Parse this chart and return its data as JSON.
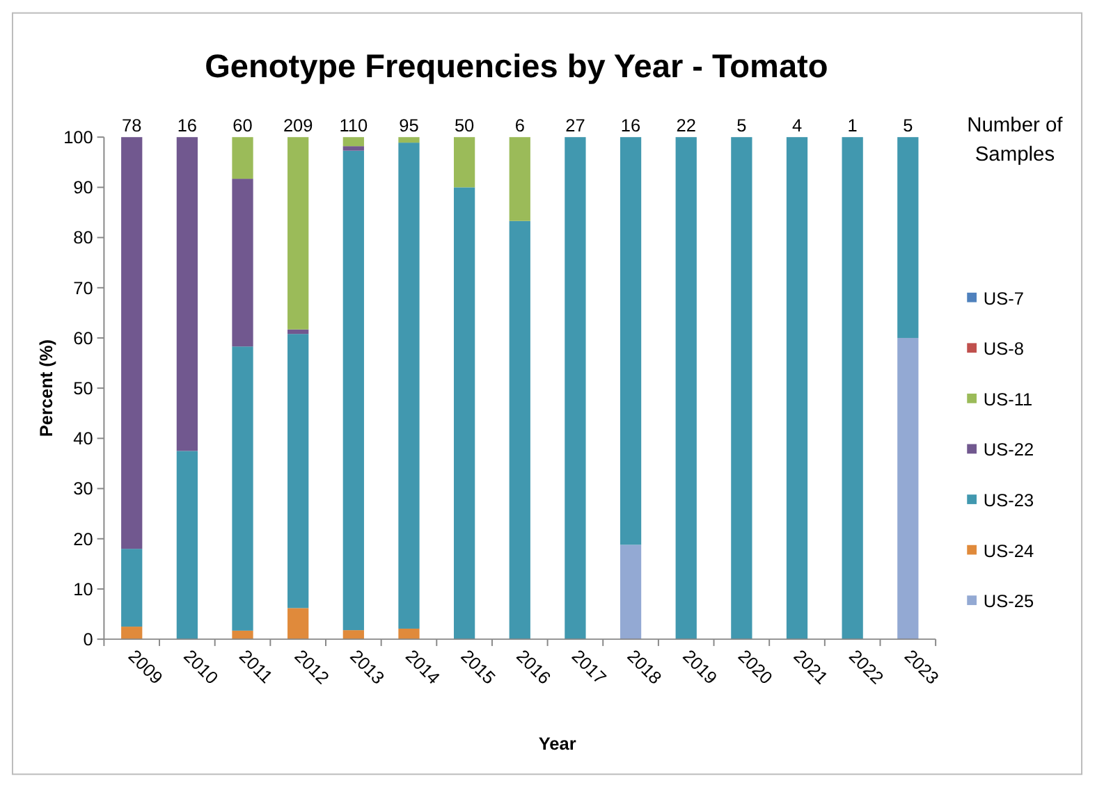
{
  "chart_data": {
    "type": "bar",
    "title": "Genotype Frequencies by Year - Tomato",
    "xlabel": "Year",
    "ylabel": "Percent (%)",
    "stacked": true,
    "categories": [
      "2009",
      "2010",
      "2011",
      "2012",
      "2013",
      "2014",
      "2015",
      "2016",
      "2017",
      "2018",
      "2019",
      "2020",
      "2021",
      "2022",
      "2023"
    ],
    "series": [
      {
        "name": "US-25",
        "color": "#93a9d3",
        "values": [
          0,
          0,
          0,
          0,
          0,
          0,
          0,
          0,
          0,
          18.8,
          0,
          0,
          0,
          0,
          60
        ]
      },
      {
        "name": "US-24",
        "color": "#e08a3b",
        "values": [
          2.5,
          0,
          1.7,
          6.2,
          1.8,
          2.1,
          0,
          0,
          0,
          0,
          0,
          0,
          0,
          0,
          0
        ]
      },
      {
        "name": "US-23",
        "color": "#4198af",
        "values": [
          15.5,
          37.5,
          56.6,
          54.6,
          95.5,
          96.8,
          90,
          83.3,
          100,
          81.2,
          100,
          100,
          100,
          100,
          40
        ]
      },
      {
        "name": "US-22",
        "color": "#71588f",
        "values": [
          82,
          62.5,
          33.4,
          0.9,
          0.9,
          0,
          0,
          0,
          0,
          0,
          0,
          0,
          0,
          0,
          0
        ]
      },
      {
        "name": "US-11",
        "color": "#9bbb59",
        "values": [
          0,
          0,
          8.3,
          38.3,
          1.8,
          1.1,
          10,
          16.7,
          0,
          0,
          0,
          0,
          0,
          0,
          0
        ]
      },
      {
        "name": "US-8",
        "color": "#c0504d",
        "values": [
          0,
          0,
          0,
          0,
          0,
          0,
          0,
          0,
          0,
          0,
          0,
          0,
          0,
          0,
          0
        ]
      },
      {
        "name": "US-7",
        "color": "#4f81bd",
        "values": [
          0,
          0,
          0,
          0,
          0,
          0,
          0,
          0,
          0,
          0,
          0,
          0,
          0,
          0,
          0
        ]
      }
    ],
    "annotations": [
      "Number of Samples",
      {
        "text": "78",
        "x": "2009",
        "y": 100
      },
      {
        "text": "16",
        "x": "2010",
        "y": 100
      },
      {
        "text": "60",
        "x": "2011",
        "y": 100
      },
      {
        "text": "209",
        "x": "2012",
        "y": 100
      },
      {
        "text": "110",
        "x": "2013",
        "y": 100
      },
      {
        "text": "95",
        "x": "2014",
        "y": 100
      },
      {
        "text": "50",
        "x": "2015",
        "y": 100
      },
      {
        "text": "6",
        "x": "2016",
        "y": 100
      },
      {
        "text": "27",
        "x": "2017",
        "y": 100
      },
      {
        "text": "16",
        "x": "2018",
        "y": 100
      },
      {
        "text": "22",
        "x": "2019",
        "y": 100
      },
      {
        "text": "5",
        "x": "2020",
        "y": 100
      },
      {
        "text": "4",
        "x": "2021",
        "y": 100
      },
      {
        "text": "1",
        "x": "2022",
        "y": 100
      },
      {
        "text": "5",
        "x": "2023",
        "y": 100
      }
    ],
    "ylim": [
      0,
      100
    ],
    "yticks": [
      0,
      10,
      20,
      30,
      40,
      50,
      60,
      70,
      80,
      90,
      100
    ],
    "grid": false,
    "legend": "right"
  }
}
